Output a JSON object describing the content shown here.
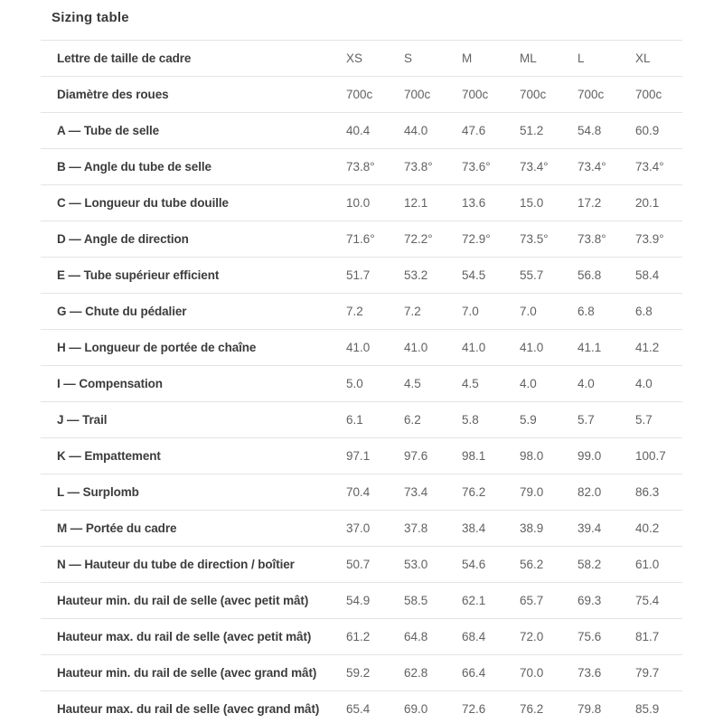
{
  "section": {
    "title": "Sizing table"
  },
  "table": {
    "header": {
      "label": "Lettre de taille de cadre",
      "columns": [
        "XS",
        "S",
        "M",
        "ML",
        "L",
        "XL"
      ]
    },
    "rows": [
      {
        "label": "Diamètre des roues",
        "values": [
          "700c",
          "700c",
          "700c",
          "700c",
          "700c",
          "700c"
        ]
      },
      {
        "label": "A — Tube de selle",
        "values": [
          "40.4",
          "44.0",
          "47.6",
          "51.2",
          "54.8",
          "60.9"
        ]
      },
      {
        "label": "B — Angle du tube de selle",
        "values": [
          "73.8°",
          "73.8°",
          "73.6°",
          "73.4°",
          "73.4°",
          "73.4°"
        ]
      },
      {
        "label": "C — Longueur du tube douille",
        "values": [
          "10.0",
          "12.1",
          "13.6",
          "15.0",
          "17.2",
          "20.1"
        ]
      },
      {
        "label": "D — Angle de direction",
        "values": [
          "71.6°",
          "72.2°",
          "72.9°",
          "73.5°",
          "73.8°",
          "73.9°"
        ]
      },
      {
        "label": "E — Tube supérieur efficient",
        "values": [
          "51.7",
          "53.2",
          "54.5",
          "55.7",
          "56.8",
          "58.4"
        ]
      },
      {
        "label": "G — Chute du pédalier",
        "values": [
          "7.2",
          "7.2",
          "7.0",
          "7.0",
          "6.8",
          "6.8"
        ]
      },
      {
        "label": "H — Longueur de portée de chaîne",
        "values": [
          "41.0",
          "41.0",
          "41.0",
          "41.0",
          "41.1",
          "41.2"
        ]
      },
      {
        "label": "I — Compensation",
        "values": [
          "5.0",
          "4.5",
          "4.5",
          "4.0",
          "4.0",
          "4.0"
        ]
      },
      {
        "label": "J — Trail",
        "values": [
          "6.1",
          "6.2",
          "5.8",
          "5.9",
          "5.7",
          "5.7"
        ]
      },
      {
        "label": "K — Empattement",
        "values": [
          "97.1",
          "97.6",
          "98.1",
          "98.0",
          "99.0",
          "100.7"
        ]
      },
      {
        "label": "L — Surplomb",
        "values": [
          "70.4",
          "73.4",
          "76.2",
          "79.0",
          "82.0",
          "86.3"
        ]
      },
      {
        "label": "M — Portée du cadre",
        "values": [
          "37.0",
          "37.8",
          "38.4",
          "38.9",
          "39.4",
          "40.2"
        ]
      },
      {
        "label": "N — Hauteur du tube de direction / boîtier",
        "values": [
          "50.7",
          "53.0",
          "54.6",
          "56.2",
          "58.2",
          "61.0"
        ]
      },
      {
        "label": "Hauteur min. du rail de selle (avec petit mât)",
        "values": [
          "54.9",
          "58.5",
          "62.1",
          "65.7",
          "69.3",
          "75.4"
        ]
      },
      {
        "label": "Hauteur max. du rail de selle (avec petit mât)",
        "values": [
          "61.2",
          "64.8",
          "68.4",
          "72.0",
          "75.6",
          "81.7"
        ]
      },
      {
        "label": "Hauteur min. du rail de selle (avec grand mât)",
        "values": [
          "59.2",
          "62.8",
          "66.4",
          "70.0",
          "73.6",
          "79.7"
        ]
      },
      {
        "label": "Hauteur max. du rail de selle (avec grand mât)",
        "values": [
          "65.4",
          "69.0",
          "72.6",
          "76.2",
          "79.8",
          "85.9"
        ]
      }
    ],
    "colors": {
      "title_text": "#3a3a3a",
      "label_text": "#3c3c3c",
      "value_text": "#616161",
      "divider": "#e4e4e4",
      "background": "#ffffff"
    }
  }
}
